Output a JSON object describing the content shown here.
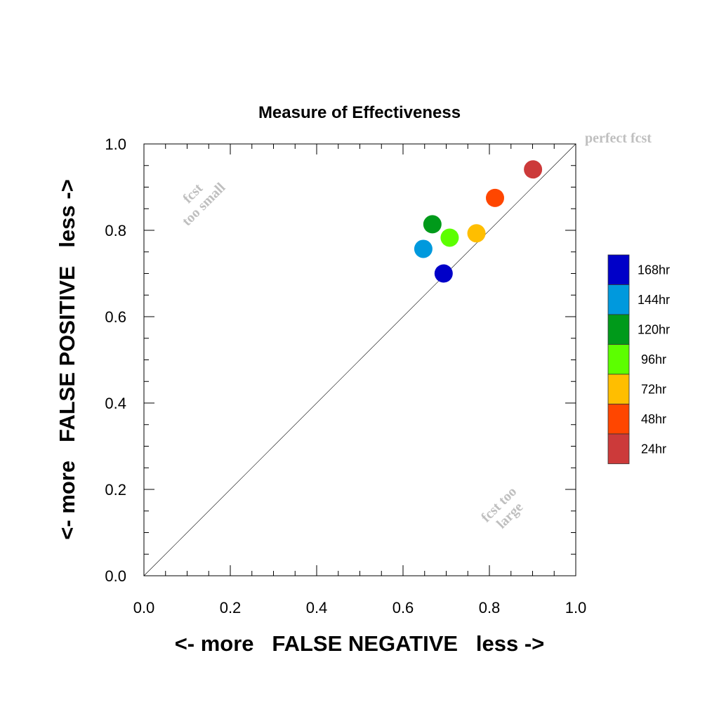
{
  "chart_data": {
    "type": "scatter",
    "title": "Measure of Effectiveness",
    "xlabel": "<- more   FALSE NEGATIVE   less ->",
    "ylabel": "<- more   FALSE POSITIVE   less ->",
    "xlim": [
      0,
      1
    ],
    "ylim": [
      0,
      1
    ],
    "xticks": [
      "0.0",
      "0.2",
      "0.4",
      "0.6",
      "0.8",
      "1.0"
    ],
    "yticks": [
      "0.0",
      "0.2",
      "0.4",
      "0.6",
      "0.8",
      "1.0"
    ],
    "grid": false,
    "diagonal_line": true,
    "legend_position": "right",
    "annotations": {
      "perfect": "perfect fcst",
      "too_small": [
        "fcst",
        "too small"
      ],
      "too_large": [
        "fcst too",
        "large"
      ]
    },
    "series": [
      {
        "name": "168hr",
        "color": "#0000c8",
        "x": 0.694,
        "y": 0.7
      },
      {
        "name": "144hr",
        "color": "#0099dd",
        "x": 0.647,
        "y": 0.757
      },
      {
        "name": "120hr",
        "color": "#009a1a",
        "x": 0.668,
        "y": 0.814
      },
      {
        "name": "96hr",
        "color": "#5cff00",
        "x": 0.708,
        "y": 0.783
      },
      {
        "name": "72hr",
        "color": "#ffbe00",
        "x": 0.77,
        "y": 0.793
      },
      {
        "name": "48hr",
        "color": "#ff4600",
        "x": 0.813,
        "y": 0.875
      },
      {
        "name": "24hr",
        "color": "#cc3a3a",
        "x": 0.901,
        "y": 0.941
      }
    ]
  }
}
